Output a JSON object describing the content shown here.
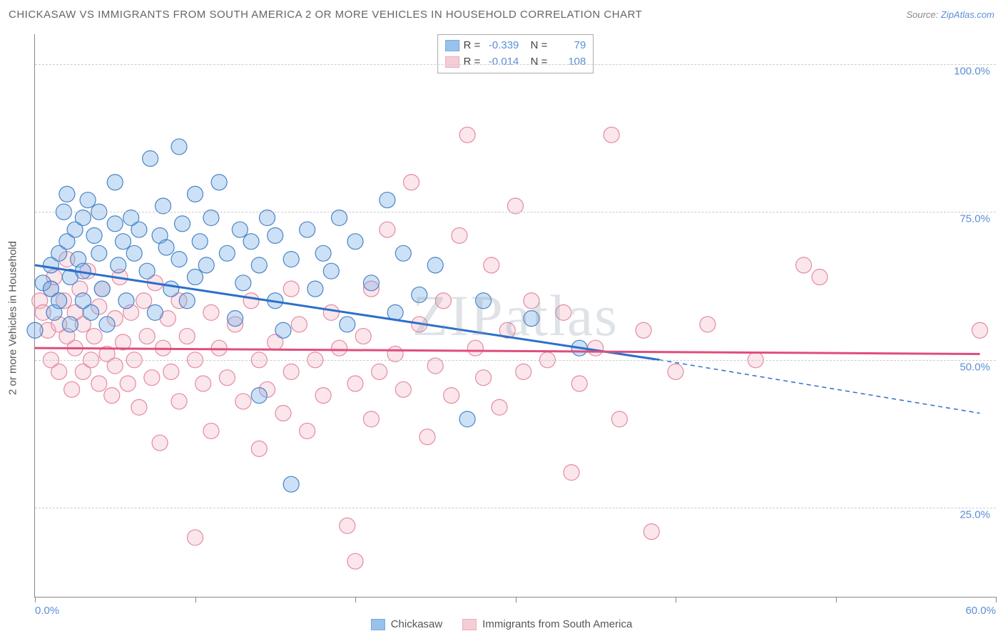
{
  "header": {
    "title": "CHICKASAW VS IMMIGRANTS FROM SOUTH AMERICA 2 OR MORE VEHICLES IN HOUSEHOLD CORRELATION CHART",
    "source_prefix": "Source: ",
    "source_link": "ZipAtlas.com"
  },
  "chart": {
    "type": "scatter",
    "background_color": "#ffffff",
    "grid_color": "#cccccc",
    "axis_color": "#888888",
    "ylabel": "2 or more Vehicles in Household",
    "label_fontsize": 15,
    "xlim": [
      0,
      60
    ],
    "ylim": [
      10,
      105
    ],
    "ytick_values": [
      25,
      50,
      75,
      100
    ],
    "ytick_labels": [
      "25.0%",
      "50.0%",
      "75.0%",
      "100.0%"
    ],
    "xtick_values": [
      0,
      10,
      20,
      30,
      40,
      50,
      60
    ],
    "xtick_labels_shown": {
      "0": "0.0%",
      "60": "60.0%"
    },
    "watermark": "ZIPatlas",
    "marker_radius": 11,
    "marker_fill_opacity": 0.35,
    "marker_stroke_width": 1.2
  },
  "series": [
    {
      "name": "Chickasaw",
      "color": "#6fa8e6",
      "stroke": "#4a84c7",
      "line_color": "#2c6fc9",
      "R": "-0.339",
      "N": "79",
      "trend": {
        "x1": 0,
        "y1": 66,
        "x2": 39,
        "y2": 50,
        "dash_x2": 59,
        "dash_y2": 41
      },
      "points": [
        [
          0,
          55
        ],
        [
          0.5,
          63
        ],
        [
          1,
          62
        ],
        [
          1,
          66
        ],
        [
          1.2,
          58
        ],
        [
          1.5,
          68
        ],
        [
          1.5,
          60
        ],
        [
          1.8,
          75
        ],
        [
          2,
          78
        ],
        [
          2,
          70
        ],
        [
          2.2,
          64
        ],
        [
          2.2,
          56
        ],
        [
          2.5,
          72
        ],
        [
          2.7,
          67
        ],
        [
          3,
          74
        ],
        [
          3,
          65
        ],
        [
          3,
          60
        ],
        [
          3.3,
          77
        ],
        [
          3.5,
          58
        ],
        [
          3.7,
          71
        ],
        [
          4,
          75
        ],
        [
          4,
          68
        ],
        [
          4.2,
          62
        ],
        [
          4.5,
          56
        ],
        [
          5,
          80
        ],
        [
          5,
          73
        ],
        [
          5.2,
          66
        ],
        [
          5.5,
          70
        ],
        [
          5.7,
          60
        ],
        [
          6,
          74
        ],
        [
          6.2,
          68
        ],
        [
          6.5,
          72
        ],
        [
          7,
          65
        ],
        [
          7.2,
          84
        ],
        [
          7.5,
          58
        ],
        [
          7.8,
          71
        ],
        [
          8,
          76
        ],
        [
          8.2,
          69
        ],
        [
          8.5,
          62
        ],
        [
          9,
          67
        ],
        [
          9,
          86
        ],
        [
          9.2,
          73
        ],
        [
          9.5,
          60
        ],
        [
          10,
          78
        ],
        [
          10,
          64
        ],
        [
          10.3,
          70
        ],
        [
          10.7,
          66
        ],
        [
          11,
          74
        ],
        [
          11.5,
          80
        ],
        [
          12,
          68
        ],
        [
          12.5,
          57
        ],
        [
          12.8,
          72
        ],
        [
          13,
          63
        ],
        [
          13.5,
          70
        ],
        [
          14,
          44
        ],
        [
          14,
          66
        ],
        [
          14.5,
          74
        ],
        [
          15,
          60
        ],
        [
          15,
          71
        ],
        [
          15.5,
          55
        ],
        [
          16,
          67
        ],
        [
          16,
          29
        ],
        [
          17,
          72
        ],
        [
          17.5,
          62
        ],
        [
          18,
          68
        ],
        [
          18.5,
          65
        ],
        [
          19,
          74
        ],
        [
          19.5,
          56
        ],
        [
          20,
          70
        ],
        [
          21,
          63
        ],
        [
          22,
          77
        ],
        [
          22.5,
          58
        ],
        [
          23,
          68
        ],
        [
          24,
          61
        ],
        [
          25,
          66
        ],
        [
          27,
          40
        ],
        [
          28,
          60
        ],
        [
          31,
          57
        ],
        [
          34,
          52
        ]
      ]
    },
    {
      "name": "Immigrants from South America",
      "color": "#f2b8c6",
      "stroke": "#e58aa3",
      "line_color": "#e04d7c",
      "R": "-0.014",
      "N": "108",
      "trend": {
        "x1": 0,
        "y1": 52,
        "x2": 59,
        "y2": 51
      },
      "points": [
        [
          0.3,
          60
        ],
        [
          0.5,
          58
        ],
        [
          0.8,
          55
        ],
        [
          1,
          62
        ],
        [
          1,
          50
        ],
        [
          1.2,
          64
        ],
        [
          1.5,
          56
        ],
        [
          1.5,
          48
        ],
        [
          1.8,
          60
        ],
        [
          2,
          54
        ],
        [
          2,
          67
        ],
        [
          2.3,
          45
        ],
        [
          2.5,
          58
        ],
        [
          2.5,
          52
        ],
        [
          2.8,
          62
        ],
        [
          3,
          48
        ],
        [
          3,
          56
        ],
        [
          3.3,
          65
        ],
        [
          3.5,
          50
        ],
        [
          3.7,
          54
        ],
        [
          4,
          59
        ],
        [
          4,
          46
        ],
        [
          4.2,
          62
        ],
        [
          4.5,
          51
        ],
        [
          4.8,
          44
        ],
        [
          5,
          57
        ],
        [
          5,
          49
        ],
        [
          5.3,
          64
        ],
        [
          5.5,
          53
        ],
        [
          5.8,
          46
        ],
        [
          6,
          58
        ],
        [
          6.2,
          50
        ],
        [
          6.5,
          42
        ],
        [
          6.8,
          60
        ],
        [
          7,
          54
        ],
        [
          7.3,
          47
        ],
        [
          7.5,
          63
        ],
        [
          7.8,
          36
        ],
        [
          8,
          52
        ],
        [
          8.3,
          57
        ],
        [
          8.5,
          48
        ],
        [
          9,
          60
        ],
        [
          9,
          43
        ],
        [
          9.5,
          54
        ],
        [
          10,
          20
        ],
        [
          10,
          50
        ],
        [
          10.5,
          46
        ],
        [
          11,
          58
        ],
        [
          11,
          38
        ],
        [
          11.5,
          52
        ],
        [
          12,
          47
        ],
        [
          12.5,
          56
        ],
        [
          13,
          43
        ],
        [
          13.5,
          60
        ],
        [
          14,
          50
        ],
        [
          14,
          35
        ],
        [
          14.5,
          45
        ],
        [
          15,
          53
        ],
        [
          15.5,
          41
        ],
        [
          16,
          62
        ],
        [
          16,
          48
        ],
        [
          16.5,
          56
        ],
        [
          17,
          38
        ],
        [
          17.5,
          50
        ],
        [
          18,
          44
        ],
        [
          18.5,
          58
        ],
        [
          19,
          52
        ],
        [
          19.5,
          22
        ],
        [
          20,
          16
        ],
        [
          20,
          46
        ],
        [
          20.5,
          54
        ],
        [
          21,
          62
        ],
        [
          21,
          40
        ],
        [
          21.5,
          48
        ],
        [
          22,
          72
        ],
        [
          22.5,
          51
        ],
        [
          23,
          45
        ],
        [
          23.5,
          80
        ],
        [
          24,
          56
        ],
        [
          24.5,
          37
        ],
        [
          25,
          49
        ],
        [
          25.5,
          60
        ],
        [
          26,
          44
        ],
        [
          26.5,
          71
        ],
        [
          27,
          88
        ],
        [
          27.5,
          52
        ],
        [
          28,
          47
        ],
        [
          28.5,
          66
        ],
        [
          29,
          42
        ],
        [
          29.5,
          55
        ],
        [
          30,
          76
        ],
        [
          30.5,
          48
        ],
        [
          31,
          60
        ],
        [
          32,
          50
        ],
        [
          33,
          58
        ],
        [
          33.5,
          31
        ],
        [
          34,
          46
        ],
        [
          35,
          52
        ],
        [
          36,
          88
        ],
        [
          36.5,
          40
        ],
        [
          38,
          55
        ],
        [
          38.5,
          21
        ],
        [
          40,
          48
        ],
        [
          42,
          56
        ],
        [
          45,
          50
        ],
        [
          48,
          66
        ],
        [
          49,
          64
        ],
        [
          59,
          55
        ]
      ]
    }
  ],
  "stats_box": {
    "R_label": "R =",
    "N_label": "N ="
  },
  "legend": {
    "items": [
      {
        "label": "Chickasaw",
        "series": 0
      },
      {
        "label": "Immigrants from South America",
        "series": 1
      }
    ]
  }
}
